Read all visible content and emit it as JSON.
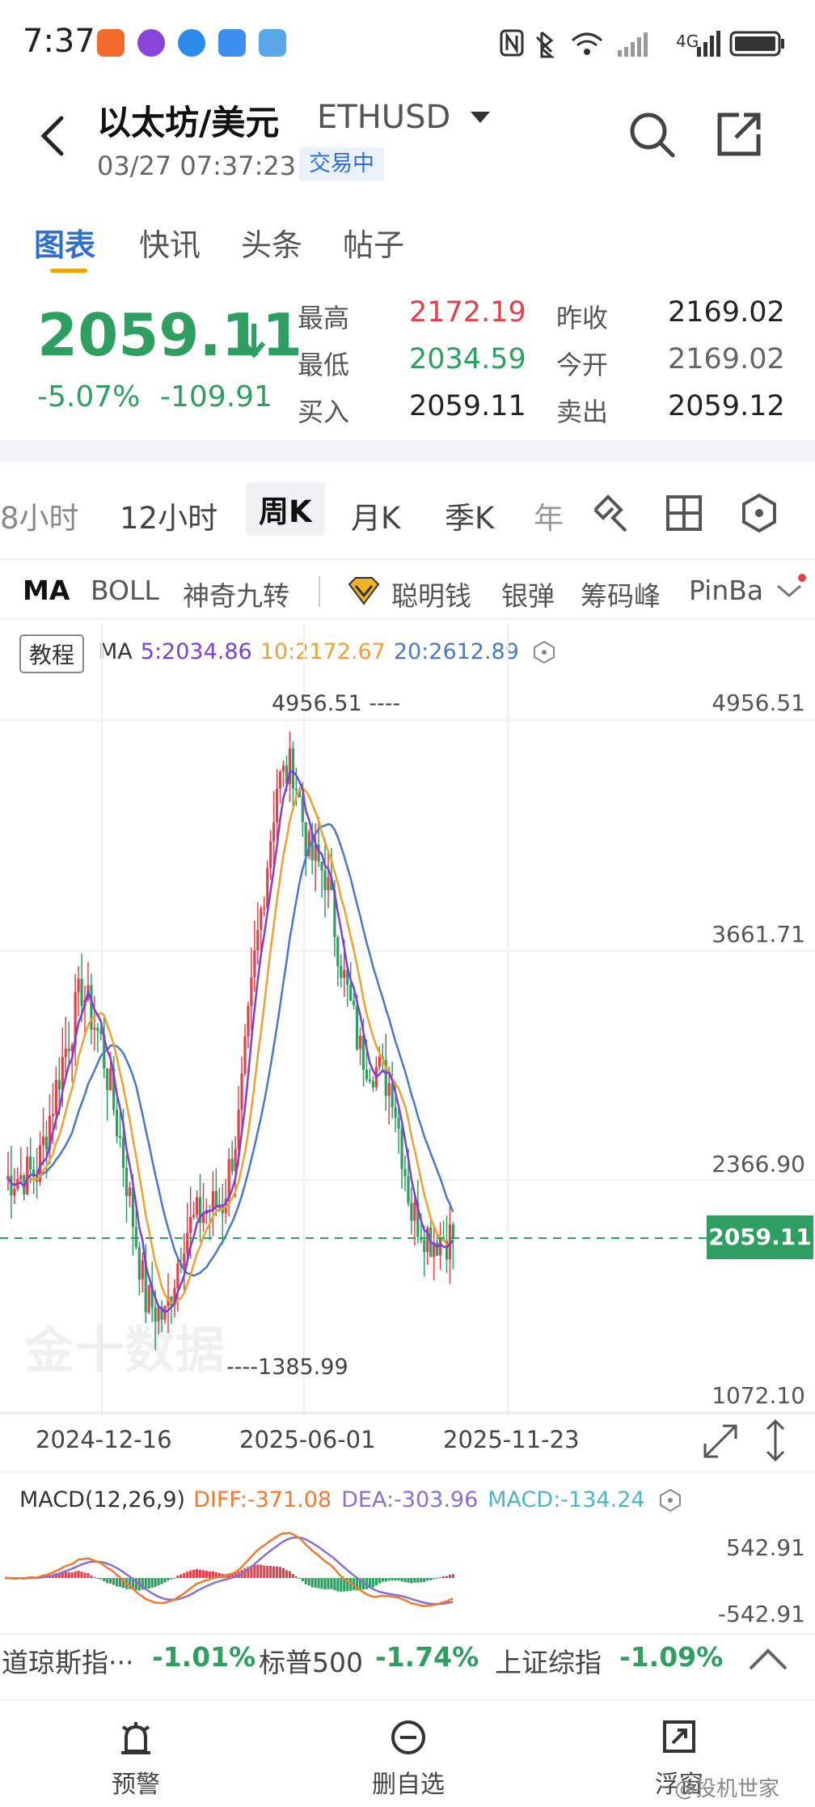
{
  "status_bar": {
    "time": "7:37",
    "network": "4G"
  },
  "header": {
    "title": "以太坊/美元",
    "symbol": "ETHUSD",
    "timestamp": "03/27 07:37:23",
    "trade_status": "交易中"
  },
  "tabs": [
    "图表",
    "快讯",
    "头条",
    "帖子"
  ],
  "quote": {
    "last": "2059.11",
    "change_pct": "-5.07%",
    "change_abs": "-109.91",
    "high_label": "最高",
    "high": "2172.19",
    "low_label": "最低",
    "low": "2034.59",
    "bid_label": "买入",
    "bid": "2059.11",
    "prev_close_label": "昨收",
    "prev_close": "2169.02",
    "open_label": "今开",
    "open": "2169.02",
    "ask_label": "卖出",
    "ask": "2059.12"
  },
  "periods": [
    "8小时",
    "12小时",
    "周K",
    "月K",
    "季K",
    "年"
  ],
  "indicators": [
    "MA",
    "BOLL",
    "神奇九转",
    "聪明钱",
    "银弹",
    "筹码峰",
    "PinBa"
  ],
  "chart": {
    "tutorial": "教程",
    "ma_label": "MA",
    "ma5": "5:2034.86",
    "ma10": "10:2172.67",
    "ma20": "20:2612.89",
    "price_labels": [
      "4956.51",
      "3661.71",
      "2366.90",
      "1072.10"
    ],
    "current_price": "2059.11",
    "high_marker": "4956.51 ----",
    "low_marker": "----1385.99",
    "dates": [
      "2024-12-16",
      "2025-06-01",
      "2025-11-23"
    ],
    "watermark": "金十数据",
    "colors": {
      "up": "#e0424b",
      "down": "#2e9e61",
      "ma5": "#7b3fd6",
      "ma10": "#f0a030",
      "ma20": "#4a78c9"
    }
  },
  "macd": {
    "label": "MACD(12,26,9)",
    "diff": "DIFF:-371.08",
    "dea": "DEA:-303.96",
    "macd": "MACD:-134.24",
    "levels": [
      "542.91",
      "-542.91"
    ]
  },
  "indices": [
    {
      "name": "道琼斯指···",
      "value": "-1.01%"
    },
    {
      "name": "标普500",
      "value": "-1.74%"
    },
    {
      "name": "上证综指",
      "value": "-1.09%"
    }
  ],
  "nav": [
    "预警",
    "删自选",
    "浮窗"
  ],
  "footer_watermark": "@投机世家"
}
